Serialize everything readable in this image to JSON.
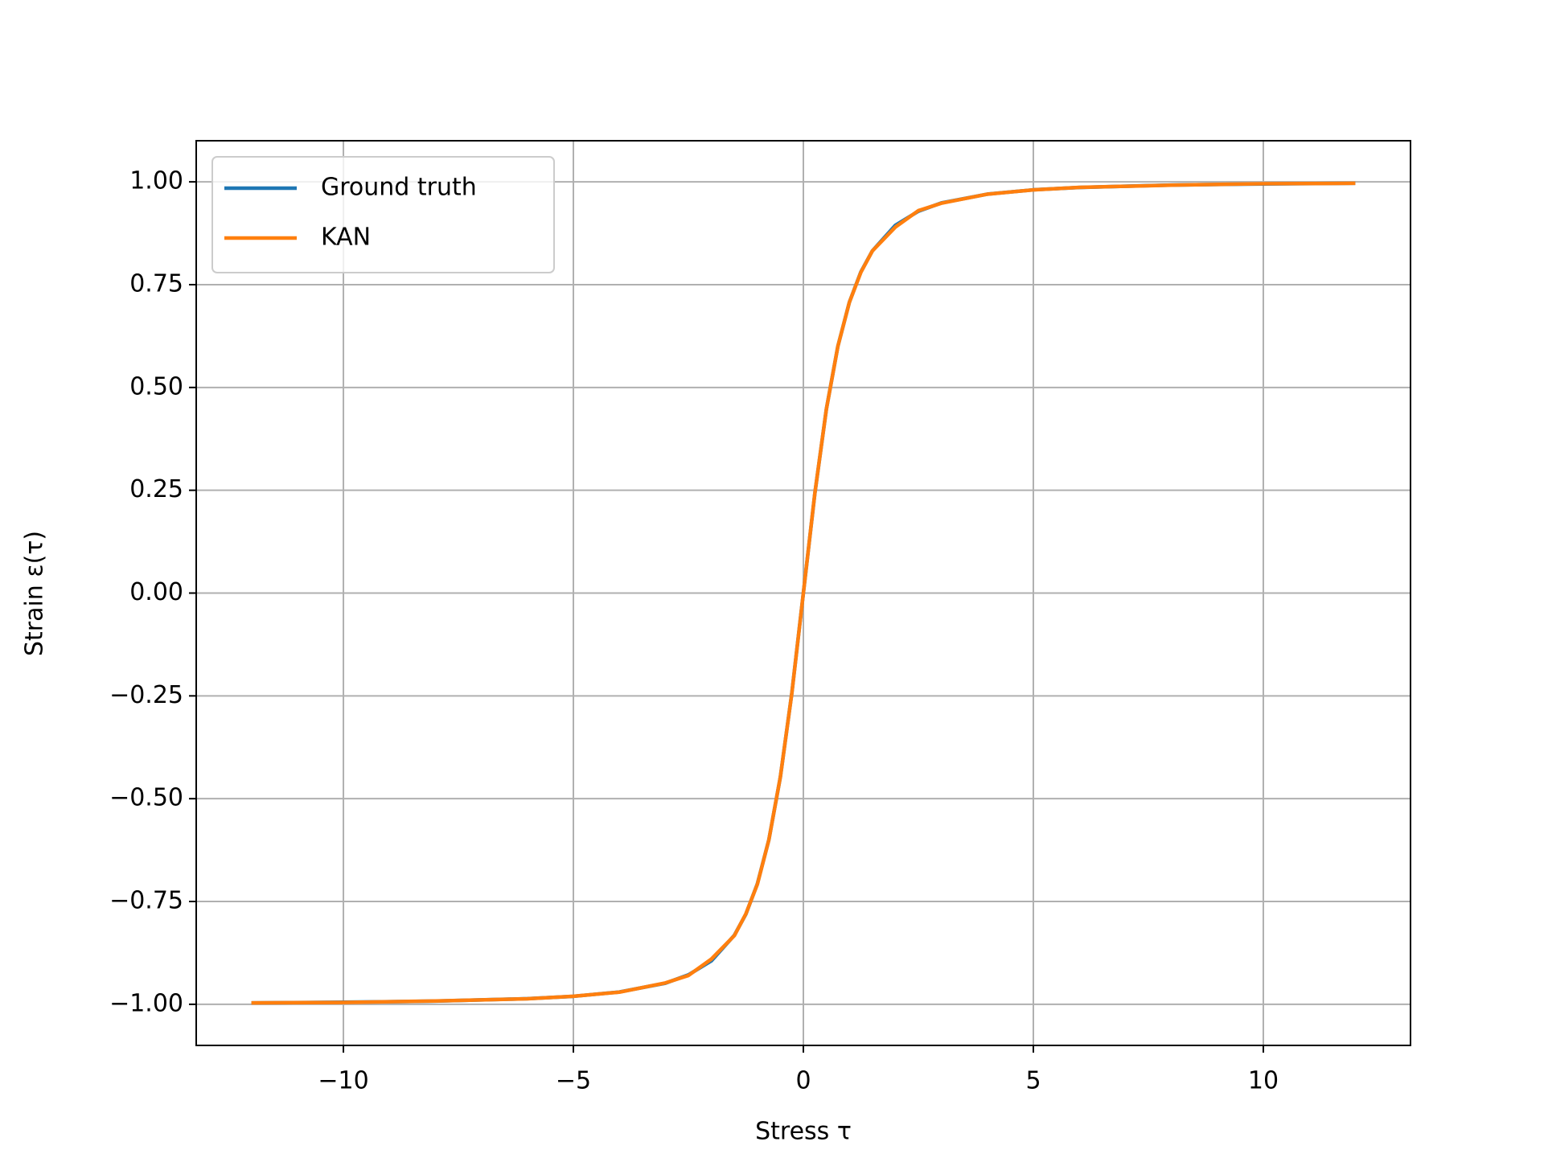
{
  "chart_data": {
    "type": "line",
    "xlabel": "Stress τ",
    "ylabel": "Strain ε(τ)",
    "x": [
      -12,
      -10,
      -8,
      -6,
      -5,
      -4,
      -3,
      -2.5,
      -2,
      -1.5,
      -1.25,
      -1,
      -0.75,
      -0.5,
      -0.25,
      0,
      0.25,
      0.5,
      0.75,
      1,
      1.25,
      1.5,
      2,
      2.5,
      3,
      4,
      5,
      6,
      8,
      10,
      12
    ],
    "series": [
      {
        "name": "Ground truth",
        "color": "#1f77b4",
        "values": [
          -0.9965,
          -0.995,
          -0.9923,
          -0.9864,
          -0.9806,
          -0.9701,
          -0.9487,
          -0.9285,
          -0.8944,
          -0.8321,
          -0.7809,
          -0.7071,
          -0.6,
          -0.4472,
          -0.2425,
          0,
          0.2425,
          0.4472,
          0.6,
          0.7071,
          0.7809,
          0.8321,
          0.8944,
          0.9285,
          0.9487,
          0.9701,
          0.9806,
          0.9864,
          0.9923,
          0.995,
          0.9965
        ]
      },
      {
        "name": "KAN",
        "color": "#ff7f0e",
        "values": [
          -0.9965,
          -0.9955,
          -0.992,
          -0.9865,
          -0.9805,
          -0.9705,
          -0.948,
          -0.93,
          -0.89,
          -0.833,
          -0.78,
          -0.708,
          -0.6,
          -0.447,
          -0.243,
          0,
          0.243,
          0.447,
          0.6,
          0.707,
          0.78,
          0.832,
          0.89,
          0.93,
          0.948,
          0.97,
          0.9805,
          0.9865,
          0.992,
          0.9955,
          0.9965
        ]
      }
    ],
    "xlim": [
      -13.2,
      13.2
    ],
    "ylim": [
      -1.1,
      1.1
    ],
    "xticks": [
      {
        "value": -10,
        "label": "−10"
      },
      {
        "value": -5,
        "label": "−5"
      },
      0,
      5,
      10
    ],
    "yticks": [
      {
        "value": -1,
        "label": "−1.00"
      },
      {
        "value": -0.75,
        "label": "−0.75"
      },
      {
        "value": -0.5,
        "label": "−0.50"
      },
      {
        "value": -0.25,
        "label": "−0.25"
      },
      {
        "value": 0,
        "label": "0.00"
      },
      {
        "value": 0.25,
        "label": "0.25"
      },
      {
        "value": 0.5,
        "label": "0.50"
      },
      {
        "value": 0.75,
        "label": "0.75"
      },
      {
        "value": 1,
        "label": "1.00"
      }
    ],
    "grid": true,
    "legend": "upper-left"
  }
}
